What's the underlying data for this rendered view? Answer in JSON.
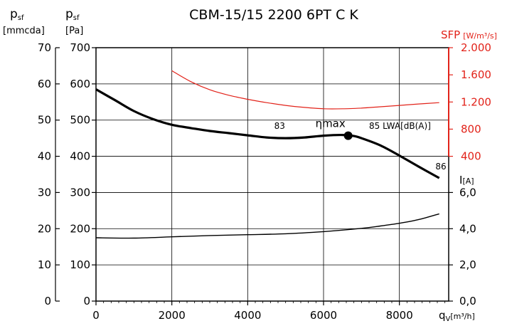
{
  "chart_data": {
    "type": "line",
    "title": "CBM-15/15 2200 6PT C K",
    "x_axis": {
      "label": "q",
      "label_sub": "V",
      "unit": "[m³/h]",
      "range": [
        0,
        9300
      ],
      "ticks": [
        0,
        2000,
        4000,
        6000,
        8000
      ],
      "tick_labels": [
        "0",
        "2000",
        "4000",
        "6000",
        "8000"
      ],
      "minor_step": 200
    },
    "y_axis_pa": {
      "label": "p",
      "label_sub": "sf",
      "unit": "[Pa]",
      "range": [
        0,
        700
      ],
      "ticks": [
        0,
        100,
        200,
        300,
        400,
        500,
        600,
        700
      ],
      "tick_labels": [
        "0",
        "100",
        "200",
        "300",
        "400",
        "500",
        "600",
        "700"
      ]
    },
    "y_axis_mmcda": {
      "label": "p",
      "label_sub": "sf",
      "unit": "[mmcda]",
      "ticks": [
        0,
        10,
        20,
        30,
        40,
        50,
        60,
        70
      ],
      "tick_labels": [
        "0",
        "10",
        "20",
        "30",
        "40",
        "50",
        "60",
        "70"
      ]
    },
    "y_axis_sfp": {
      "label": "SFP",
      "unit": "[W/m³/s]",
      "ticks": [
        400,
        800,
        1200,
        1600,
        2000
      ],
      "tick_labels": [
        "400",
        "800",
        "1.200",
        "1.600",
        "2.000"
      ],
      "pa_at_400": 400,
      "pa_at_2000": 700
    },
    "y_axis_current": {
      "label": "I",
      "unit": "[A]",
      "ticks": [
        0,
        2,
        4,
        6
      ],
      "tick_labels": [
        "0,0",
        "2,0",
        "4,0",
        "6,0"
      ],
      "pa_per_unit": 50
    },
    "series": [
      {
        "key": "pressure",
        "color": "#000000",
        "points": [
          [
            0,
            585
          ],
          [
            500,
            555
          ],
          [
            1000,
            525
          ],
          [
            1500,
            503
          ],
          [
            2000,
            487
          ],
          [
            2500,
            478
          ],
          [
            3000,
            470
          ],
          [
            3500,
            464
          ],
          [
            4000,
            458
          ],
          [
            4500,
            452
          ],
          [
            5000,
            450
          ],
          [
            5500,
            452
          ],
          [
            6000,
            457
          ],
          [
            6500,
            459
          ],
          [
            6800,
            456
          ],
          [
            7000,
            450
          ],
          [
            7500,
            430
          ],
          [
            8000,
            402
          ],
          [
            8500,
            372
          ],
          [
            9050,
            340
          ]
        ]
      },
      {
        "key": "sfp",
        "color": "#e2231a",
        "points": [
          [
            2000,
            1660
          ],
          [
            2500,
            1500
          ],
          [
            3000,
            1380
          ],
          [
            3500,
            1300
          ],
          [
            4000,
            1240
          ],
          [
            4500,
            1190
          ],
          [
            5000,
            1150
          ],
          [
            5500,
            1120
          ],
          [
            6000,
            1100
          ],
          [
            6500,
            1100
          ],
          [
            7000,
            1110
          ],
          [
            7500,
            1130
          ],
          [
            8000,
            1150
          ],
          [
            8500,
            1170
          ],
          [
            9050,
            1190
          ]
        ]
      },
      {
        "key": "current",
        "color": "#000000",
        "points": [
          [
            0,
            3.5
          ],
          [
            1000,
            3.48
          ],
          [
            2000,
            3.55
          ],
          [
            3000,
            3.62
          ],
          [
            4000,
            3.67
          ],
          [
            5000,
            3.72
          ],
          [
            6000,
            3.84
          ],
          [
            7000,
            4.02
          ],
          [
            7500,
            4.15
          ],
          [
            8000,
            4.3
          ],
          [
            8500,
            4.5
          ],
          [
            9050,
            4.82
          ]
        ]
      }
    ],
    "max_point": {
      "x": 6650,
      "y": 457,
      "label": "ηmax"
    },
    "annotations": [
      {
        "text": "83",
        "x": 4700,
        "y": 476
      },
      {
        "text": "85 L",
        "x": 7200,
        "y": 476
      },
      {
        "text": "86",
        "x": 8950,
        "y": 364
      }
    ],
    "lwa_label": {
      "main": "WA",
      "suffix": "[dB(A)]"
    },
    "grid": true
  }
}
